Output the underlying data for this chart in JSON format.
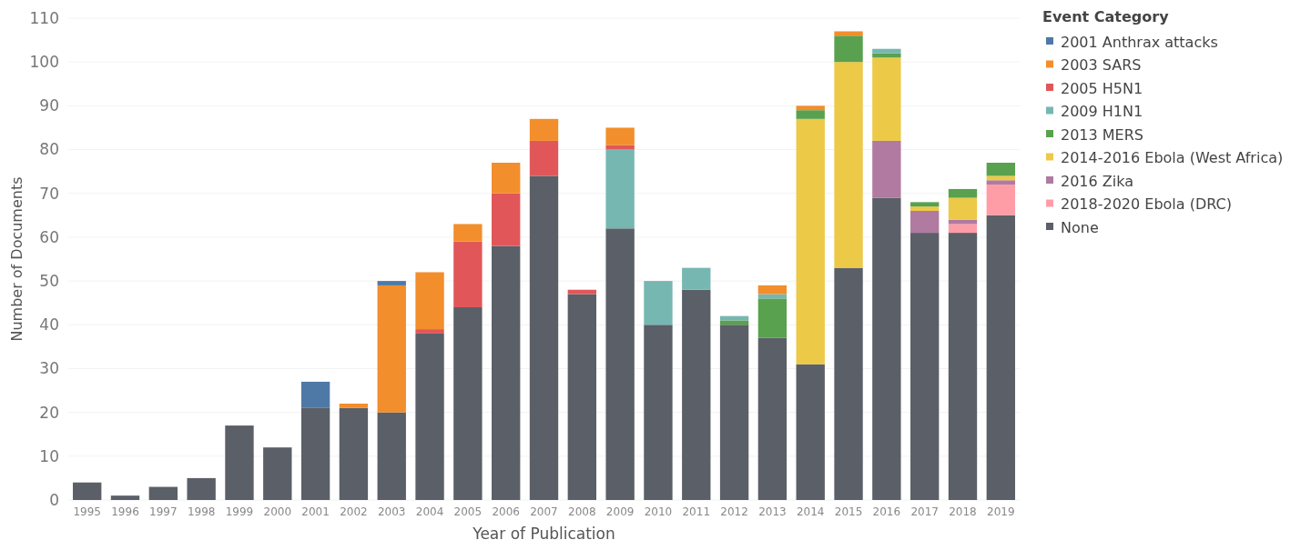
{
  "chart_data": {
    "type": "bar",
    "stacked": true,
    "xlabel": "Year of Publication",
    "ylabel": "Number of Documents",
    "legend_title": "Event Category",
    "legend": "top right",
    "grid": "y",
    "categories": [
      "1995",
      "1996",
      "1997",
      "1998",
      "1999",
      "2000",
      "2001",
      "2002",
      "2003",
      "2004",
      "2005",
      "2006",
      "2007",
      "2008",
      "2009",
      "2010",
      "2011",
      "2012",
      "2013",
      "2014",
      "2015",
      "2016",
      "2017",
      "2018",
      "2019"
    ],
    "ylim": [
      0,
      110
    ],
    "yticks": [
      0,
      10,
      20,
      30,
      40,
      50,
      60,
      70,
      80,
      90,
      100,
      110
    ],
    "series": [
      {
        "name": "None",
        "color": "#5b5f67",
        "values": [
          4,
          1,
          3,
          5,
          17,
          12,
          21,
          21,
          20,
          38,
          44,
          58,
          74,
          47,
          62,
          40,
          48,
          40,
          37,
          31,
          53,
          69,
          61,
          61,
          65
        ]
      },
      {
        "name": "2018-2020 Ebola (DRC)",
        "color": "#ff9da7",
        "values": [
          null,
          null,
          null,
          null,
          null,
          null,
          null,
          null,
          null,
          null,
          null,
          null,
          null,
          null,
          null,
          null,
          null,
          null,
          null,
          null,
          null,
          null,
          null,
          2,
          7
        ]
      },
      {
        "name": "2016 Zika",
        "color": "#b07aa1",
        "values": [
          null,
          null,
          null,
          null,
          null,
          null,
          null,
          null,
          null,
          null,
          null,
          null,
          null,
          null,
          null,
          null,
          null,
          null,
          null,
          null,
          null,
          13,
          5,
          1,
          1
        ]
      },
      {
        "name": "2014-2016 Ebola (West Africa)",
        "color": "#edc948",
        "values": [
          null,
          null,
          null,
          null,
          null,
          null,
          null,
          null,
          null,
          null,
          null,
          null,
          null,
          null,
          null,
          null,
          null,
          null,
          null,
          56,
          47,
          19,
          1,
          5,
          1
        ]
      },
      {
        "name": "2013 MERS",
        "color": "#59a14f",
        "values": [
          null,
          null,
          null,
          null,
          null,
          null,
          null,
          null,
          null,
          null,
          null,
          null,
          null,
          null,
          null,
          null,
          null,
          1,
          9,
          2,
          6,
          1,
          1,
          2,
          3
        ]
      },
      {
        "name": "2009 H1N1",
        "color": "#76b7b2",
        "values": [
          null,
          null,
          null,
          null,
          null,
          null,
          null,
          null,
          null,
          null,
          null,
          null,
          null,
          null,
          18,
          10,
          5,
          1,
          1,
          null,
          null,
          1,
          null,
          null,
          null
        ]
      },
      {
        "name": "2005 H5N1",
        "color": "#e15759",
        "values": [
          null,
          null,
          null,
          null,
          null,
          null,
          null,
          null,
          null,
          1,
          15,
          12,
          8,
          1,
          1,
          null,
          null,
          null,
          null,
          null,
          null,
          null,
          null,
          null,
          null
        ]
      },
      {
        "name": "2003 SARS",
        "color": "#f28e2b",
        "values": [
          null,
          null,
          null,
          null,
          null,
          null,
          null,
          1,
          29,
          13,
          4,
          7,
          5,
          null,
          4,
          null,
          null,
          null,
          2,
          1,
          1,
          null,
          null,
          null,
          null
        ]
      },
      {
        "name": "2001 Anthrax attacks",
        "color": "#4e79a7",
        "values": [
          null,
          null,
          null,
          null,
          null,
          null,
          6,
          null,
          1,
          null,
          null,
          null,
          null,
          null,
          null,
          null,
          null,
          null,
          null,
          null,
          null,
          null,
          null,
          null,
          null
        ]
      }
    ]
  }
}
